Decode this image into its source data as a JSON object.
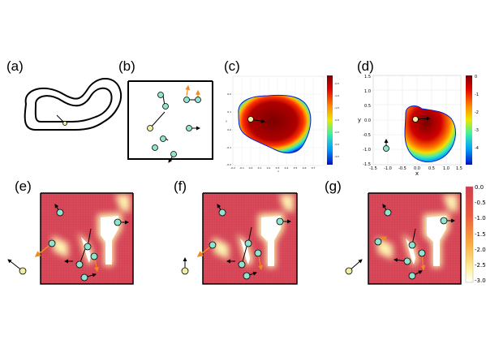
{
  "panels": {
    "a": "(a)",
    "b": "(b)",
    "c": "(c)",
    "d": "(d)",
    "e": "(e)",
    "f": "(f)",
    "g": "(g)"
  },
  "panel_c": {
    "x_ticks": [
      "-0.2",
      "-0.1",
      "0.0",
      "0.1",
      "0.2",
      "0.3",
      "0.4",
      "0.5",
      "0.6",
      "0.7"
    ],
    "y_ticks": [
      "0.2",
      "0.1",
      "0.0",
      "-0.1",
      "-0.2"
    ],
    "xlabel": "x",
    "ylabel": "y",
    "colorbar_ticks": [
      "-0.5",
      "-1.0",
      "-1.5",
      "-2.0",
      "-2.5",
      "-3.0",
      "-3.5"
    ]
  },
  "panel_d": {
    "x_ticks": [
      "-1.5",
      "-1.0",
      "-0.5",
      "0.0",
      "0.5",
      "1.0",
      "1.5"
    ],
    "y_ticks": [
      "1.5",
      "1.0",
      "0.5",
      "0.0",
      "-0.5",
      "-1.0",
      "-1.5"
    ],
    "xlabel": "x",
    "ylabel": "y",
    "colorbar_ticks": [
      "0",
      "-1",
      "-2",
      "-3",
      "-4"
    ]
  },
  "panel_g": {
    "colorbar_ticks": [
      "0.0",
      "-0.5",
      "-1.0",
      "-1.5",
      "-2.0",
      "-2.5",
      "-3.0"
    ]
  },
  "colors": {
    "agent_fill": "#8fe3cf",
    "ego_fill": "#eef0a0",
    "heat_dark": "#7a0000",
    "field_red": "#d9495a",
    "arrow_orange": "#f08a1c"
  }
}
